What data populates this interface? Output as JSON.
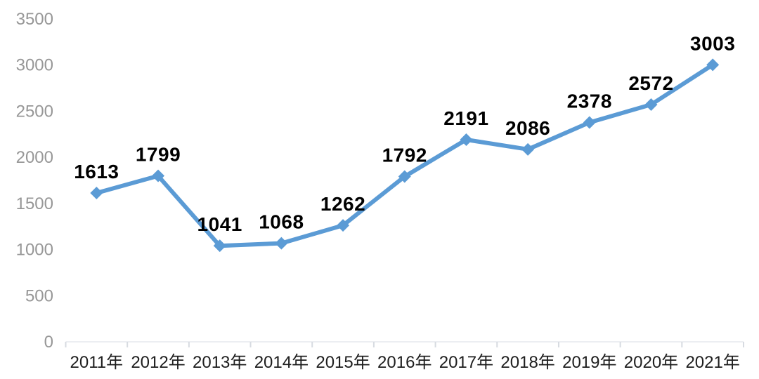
{
  "chart_data": {
    "type": "line",
    "title": "",
    "xlabel": "",
    "ylabel": "",
    "categories": [
      "2011年",
      "2012年",
      "2013年",
      "2014年",
      "2015年",
      "2016年",
      "2017年",
      "2018年",
      "2019年",
      "2020年",
      "2021年"
    ],
    "series": [
      {
        "name": "annual-value",
        "values": [
          1613,
          1799,
          1041,
          1068,
          1262,
          1792,
          2191,
          2086,
          2378,
          2572,
          3003
        ],
        "data_labels": [
          "1613",
          "1799",
          "1041",
          "1068",
          "1262",
          "1792",
          "2191",
          "2086",
          "2378",
          "2572",
          "3003"
        ]
      }
    ],
    "y_ticks": [
      "0",
      "500",
      "1000",
      "1500",
      "2000",
      "2500",
      "3000",
      "3500"
    ],
    "y_tick_values": [
      0,
      500,
      1000,
      1500,
      2000,
      2500,
      3000,
      3500
    ],
    "ylim": [
      0,
      3500
    ],
    "grid": false,
    "legend_position": "none",
    "marker": "diamond",
    "colors": {
      "line": "#5B9BD5",
      "marker": "#5B9BD5",
      "data_label": "#000000",
      "y_tick_label": "#979797",
      "x_tick_label": "#1E1E1E",
      "axis_line": "#ECEEF2",
      "tick_mark": "#D7DBE1",
      "background": "#FFFFFF"
    }
  }
}
